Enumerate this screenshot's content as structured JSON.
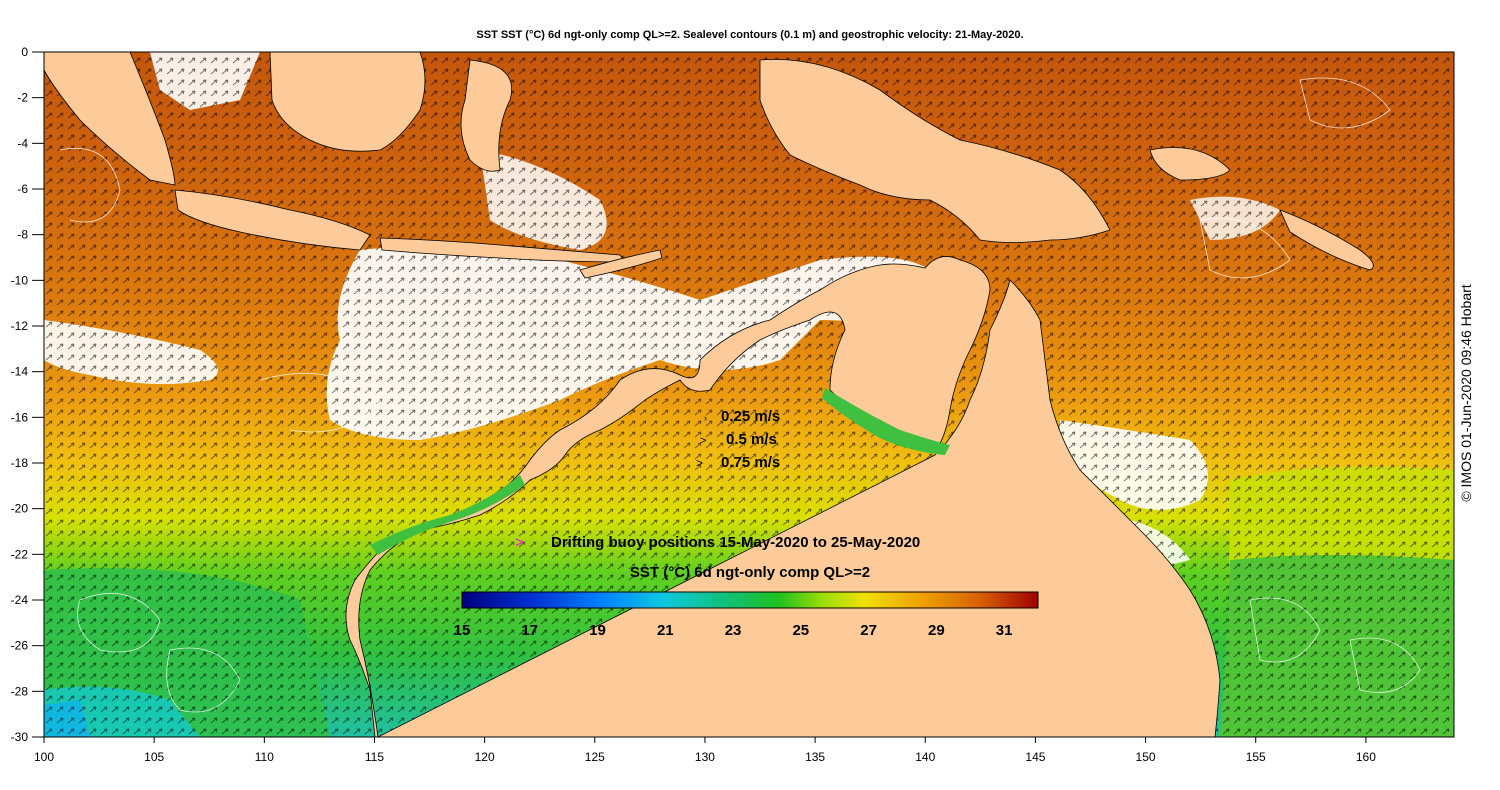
{
  "title": "SST SST (°C) 6d ngt-only comp QL>=2. Sealevel contours (0.1 m) and geostrophic velocity: 21-May-2020.",
  "credit": "© IMOS 01-Jun-2020 09:46 Hobart",
  "x_axis": {
    "ticks": [
      "100",
      "105",
      "110",
      "115",
      "120",
      "125",
      "130",
      "135",
      "140",
      "145",
      "150",
      "155",
      "160"
    ],
    "range": [
      100,
      164
    ]
  },
  "y_axis": {
    "ticks": [
      "0",
      "-2",
      "-4",
      "-6",
      "-8",
      "-10",
      "-12",
      "-14",
      "-16",
      "-18",
      "-20",
      "-22",
      "-24",
      "-26",
      "-28",
      "-30"
    ],
    "range": [
      -30,
      0
    ]
  },
  "velocity_legend": {
    "items": [
      "0.25 m/s",
      "0.5 m/s",
      "0.75 m/s"
    ]
  },
  "buoy_legend": {
    "label": "Drifting buoy positions 15-May-2020 to 25-May-2020",
    "symbol": ">",
    "symbol_color": "#ff00ff"
  },
  "colorbar": {
    "title": "SST (°C) 6d ngt-only comp QL>=2",
    "min": 15,
    "max": 32,
    "ticks": [
      "15",
      "17",
      "19",
      "21",
      "23",
      "25",
      "27",
      "29",
      "31"
    ]
  },
  "colors": {
    "land": "#fccb99",
    "cloud": "#ffffff",
    "warm_ocean": "#d8700c",
    "hot_ocean": "#c0520c",
    "mid_ocean": "#f0a010",
    "yellow_ocean": "#e8e000",
    "green_ocean": "#30c030",
    "cool_ocean": "#10c8c0"
  },
  "chart_data": {
    "type": "heatmap",
    "title": "SST SST (°C) 6d ngt-only comp QL>=2. Sealevel contours (0.1 m) and geostrophic velocity: 21-May-2020.",
    "xlim": [
      100,
      164
    ],
    "ylim": [
      -30,
      0
    ],
    "x_ticks": [
      100,
      105,
      110,
      115,
      120,
      125,
      130,
      135,
      140,
      145,
      150,
      155,
      160
    ],
    "y_ticks": [
      0,
      -2,
      -4,
      -6,
      -8,
      -10,
      -12,
      -14,
      -16,
      -18,
      -20,
      -22,
      -24,
      -26,
      -28,
      -30
    ],
    "colorbar_range": [
      15,
      32
    ],
    "colorbar_ticks": [
      15,
      17,
      19,
      21,
      23,
      25,
      27,
      29,
      31
    ]
  }
}
